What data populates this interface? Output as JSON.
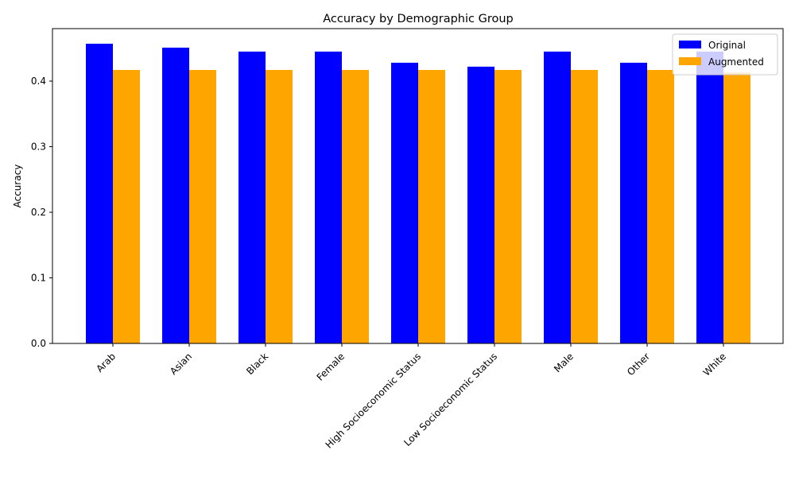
{
  "chart_data": {
    "type": "bar",
    "title": "Accuracy by Demographic Group",
    "xlabel": "",
    "ylabel": "Accuracy",
    "categories": [
      "Arab",
      "Asian",
      "Black",
      "Female",
      "High Socioeconomic Status",
      "Low Socioeconomic Status",
      "Male",
      "Other",
      "White"
    ],
    "series": [
      {
        "name": "Original",
        "color": "#0000ff",
        "values": [
          0.457,
          0.451,
          0.445,
          0.445,
          0.428,
          0.422,
          0.445,
          0.428,
          0.445
        ]
      },
      {
        "name": "Augmented",
        "color": "#ffa500",
        "values": [
          0.417,
          0.417,
          0.417,
          0.417,
          0.417,
          0.417,
          0.417,
          0.417,
          0.413
        ]
      }
    ],
    "ylim": [
      0,
      0.48
    ],
    "yticks": [
      "0.0",
      "0.1",
      "0.2",
      "0.3",
      "0.4"
    ],
    "grid": false,
    "legend_position": "top-right"
  }
}
